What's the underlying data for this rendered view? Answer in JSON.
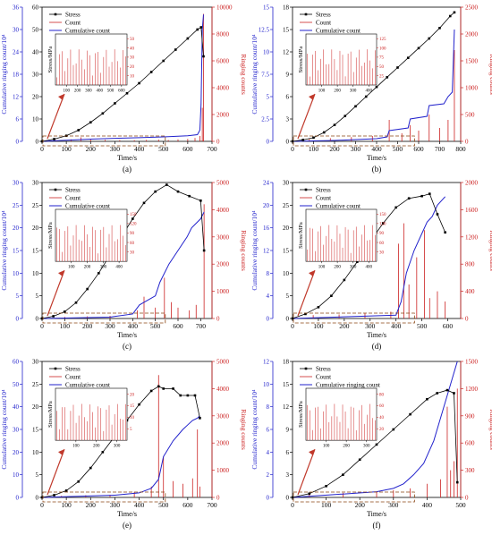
{
  "chart_data": [
    {
      "panel_label": "(a)",
      "type": "line",
      "xlabel": "Time/s",
      "xlim": [
        0,
        700
      ],
      "xticks": [
        0,
        100,
        200,
        300,
        400,
        500,
        600,
        700
      ],
      "yleft_outer": {
        "label": "Cumulative ringing count/10⁴",
        "lim": [
          0,
          36
        ],
        "ticks": [
          0,
          6,
          12,
          18,
          24,
          30,
          36
        ],
        "color": "#2222cc"
      },
      "yleft_inner": {
        "label": "Stress/MPa",
        "lim": [
          0,
          60
        ],
        "ticks": [
          0,
          10,
          20,
          30,
          40,
          50,
          60
        ],
        "color": "#000000"
      },
      "yright": {
        "label": "Ringing counts",
        "lim": [
          0,
          10000
        ],
        "ticks": [
          0,
          2000,
          4000,
          6000,
          8000,
          10000
        ],
        "color": "#cc2222"
      },
      "legend": [
        "Stress",
        "Count",
        "Cumulative count"
      ],
      "legend_position": "top-left",
      "series": [
        {
          "name": "Stress",
          "axis": "inner",
          "x": [
            0,
            50,
            100,
            150,
            200,
            250,
            300,
            350,
            400,
            450,
            500,
            550,
            600,
            640,
            655,
            665
          ],
          "y": [
            0,
            1,
            2.5,
            5,
            8.5,
            12.5,
            17,
            21.5,
            26,
            31,
            36,
            41,
            46,
            50,
            51,
            38
          ]
        },
        {
          "name": "Cumulative count",
          "axis": "outer",
          "x": [
            0,
            100,
            200,
            300,
            400,
            500,
            600,
            640,
            650,
            655,
            660,
            665
          ],
          "y": [
            0,
            0.3,
            0.6,
            0.8,
            1.0,
            1.2,
            1.5,
            1.8,
            3,
            10,
            30,
            34
          ]
        },
        {
          "name": "Count",
          "axis": "right",
          "x": [
            60,
            120,
            160,
            200,
            260,
            320,
            380,
            430,
            480,
            520,
            560,
            600,
            630,
            650,
            660,
            665
          ],
          "y": [
            80,
            150,
            300,
            200,
            120,
            100,
            90,
            110,
            130,
            100,
            150,
            180,
            250,
            400,
            2500,
            9500
          ]
        }
      ],
      "inset": {
        "xlim": [
          0,
          650
        ],
        "xticks": [
          100,
          200,
          300,
          400,
          500,
          600
        ],
        "yticks": [
          10,
          20,
          30,
          40,
          50
        ]
      }
    },
    {
      "panel_label": "(b)",
      "type": "line",
      "xlabel": "Time/s",
      "xlim": [
        0,
        800
      ],
      "xticks": [
        0,
        100,
        200,
        300,
        400,
        500,
        600,
        700,
        800
      ],
      "yleft_outer": {
        "label": "Cumulative ringing count/10⁴",
        "lim": [
          0,
          15
        ],
        "ticks": [
          0,
          2.5,
          5.0,
          7.5,
          10.0,
          12.5,
          15.0
        ],
        "color": "#2222cc"
      },
      "yleft_inner": {
        "label": "Stress/MPa",
        "lim": [
          0,
          18
        ],
        "ticks": [
          0,
          3,
          6,
          9,
          12,
          15,
          18
        ],
        "color": "#000000"
      },
      "yright": {
        "label": "Ringing counts",
        "lim": [
          0,
          2500
        ],
        "ticks": [
          0,
          500,
          1000,
          1500,
          2000,
          2500
        ],
        "color": "#cc2222"
      },
      "legend": [
        "Stress",
        "Count",
        "Cumulative count"
      ],
      "legend_position": "top-left",
      "series": [
        {
          "name": "Stress",
          "axis": "inner",
          "x": [
            0,
            50,
            100,
            150,
            200,
            250,
            300,
            350,
            400,
            450,
            500,
            550,
            600,
            650,
            700,
            750,
            770
          ],
          "y": [
            0,
            0.2,
            0.5,
            1.2,
            2.2,
            3.4,
            4.7,
            6,
            7.3,
            8.6,
            9.9,
            11.2,
            12.5,
            13.8,
            15.2,
            16.8,
            17.3
          ]
        },
        {
          "name": "Cumulative count",
          "axis": "outer",
          "x": [
            0,
            200,
            400,
            450,
            460,
            550,
            560,
            640,
            650,
            720,
            740,
            760,
            770
          ],
          "y": [
            0,
            0.1,
            0.3,
            0.5,
            1.2,
            1.5,
            2.5,
            2.8,
            4.0,
            4.2,
            5.0,
            5.5,
            12.5
          ]
        },
        {
          "name": "Count",
          "axis": "right",
          "x": [
            80,
            180,
            280,
            380,
            460,
            520,
            560,
            600,
            650,
            700,
            740,
            770
          ],
          "y": [
            50,
            60,
            80,
            100,
            400,
            150,
            300,
            200,
            500,
            250,
            400,
            1700
          ]
        }
      ],
      "inset": {
        "xlim": [
          0,
          450
        ],
        "xticks": [
          100,
          200,
          300,
          400
        ],
        "yticks": [
          25,
          50,
          75,
          100,
          125
        ]
      }
    },
    {
      "panel_label": "(c)",
      "type": "line",
      "xlabel": "Time/s",
      "xlim": [
        0,
        750
      ],
      "xticks": [
        0,
        100,
        200,
        300,
        400,
        500,
        600,
        700
      ],
      "yleft_outer": {
        "label": "Cumulative ringing count/10⁴",
        "lim": [
          0,
          30
        ],
        "ticks": [
          0,
          5,
          10,
          15,
          20,
          25,
          30
        ],
        "color": "#2222cc"
      },
      "yleft_inner": {
        "label": "Stress/MPa",
        "lim": [
          0,
          30
        ],
        "ticks": [
          0,
          5,
          10,
          15,
          20,
          25,
          30
        ],
        "color": "#000000"
      },
      "yright": {
        "label": "Ringing counts",
        "lim": [
          0,
          5000
        ],
        "ticks": [
          0,
          1000,
          2000,
          3000,
          4000,
          5000
        ],
        "color": "#cc2222"
      },
      "legend": [
        "Stress",
        "Count",
        "Cumulative count"
      ],
      "legend_position": "top-left",
      "series": [
        {
          "name": "Stress",
          "axis": "inner",
          "x": [
            0,
            50,
            100,
            150,
            200,
            250,
            300,
            350,
            400,
            450,
            500,
            550,
            600,
            650,
            700,
            715
          ],
          "y": [
            0,
            0.5,
            1.5,
            3.5,
            6.5,
            10,
            14,
            18,
            22,
            25.5,
            28,
            29.5,
            28,
            27,
            26,
            15
          ]
        },
        {
          "name": "Cumulative count",
          "axis": "outer",
          "x": [
            0,
            300,
            400,
            430,
            500,
            520,
            560,
            600,
            640,
            660,
            700,
            715
          ],
          "y": [
            0,
            0.3,
            1.0,
            3.0,
            5.0,
            8.0,
            12.0,
            15.0,
            18.0,
            20.0,
            22.0,
            23.5
          ]
        },
        {
          "name": "Count",
          "axis": "right",
          "x": [
            100,
            200,
            300,
            420,
            450,
            500,
            540,
            570,
            600,
            650,
            680,
            715
          ],
          "y": [
            60,
            80,
            100,
            300,
            800,
            400,
            1500,
            600,
            400,
            300,
            500,
            4200
          ]
        }
      ],
      "inset": {
        "xlim": [
          0,
          450
        ],
        "xticks": [
          100,
          200,
          300,
          400
        ],
        "yticks": [
          30,
          60,
          90,
          120,
          150
        ]
      }
    },
    {
      "panel_label": "(d)",
      "type": "line",
      "xlabel": "Time/s",
      "xlim": [
        0,
        650
      ],
      "xticks": [
        0,
        100,
        200,
        300,
        400,
        500,
        600
      ],
      "yleft_outer": {
        "label": "Cumulative ringing count/10⁴",
        "lim": [
          0,
          24
        ],
        "ticks": [
          0,
          4,
          8,
          12,
          16,
          20,
          24
        ],
        "color": "#2222cc"
      },
      "yleft_inner": {
        "label": "Stress/MPa",
        "lim": [
          0,
          30
        ],
        "ticks": [
          0,
          5,
          10,
          15,
          20,
          25,
          30
        ],
        "color": "#000000"
      },
      "yright": {
        "label": "Ringing counts",
        "lim": [
          0,
          2000
        ],
        "ticks": [
          0,
          400,
          800,
          1200,
          1600,
          2000
        ],
        "color": "#cc2222"
      },
      "legend": [
        "Stress",
        "Count",
        "Cumulative count"
      ],
      "legend_position": "top-left",
      "series": [
        {
          "name": "Stress",
          "axis": "inner",
          "x": [
            0,
            50,
            100,
            150,
            200,
            250,
            300,
            350,
            400,
            450,
            500,
            530,
            560,
            590
          ],
          "y": [
            0,
            1,
            2.5,
            5,
            8.5,
            12.5,
            17,
            21,
            24.5,
            26.5,
            27,
            27.5,
            23,
            19
          ]
        },
        {
          "name": "Cumulative count",
          "axis": "outer",
          "x": [
            0,
            200,
            400,
            420,
            440,
            470,
            500,
            520,
            540,
            560,
            590
          ],
          "y": [
            0,
            0.3,
            0.6,
            3,
            8,
            12,
            15,
            17,
            18,
            20,
            21.5
          ]
        },
        {
          "name": "Count",
          "axis": "right",
          "x": [
            80,
            180,
            280,
            380,
            410,
            430,
            450,
            480,
            510,
            530,
            560,
            590
          ],
          "y": [
            50,
            60,
            80,
            100,
            1100,
            1400,
            500,
            900,
            1300,
            300,
            400,
            250
          ]
        }
      ],
      "inset": {
        "xlim": [
          0,
          450
        ],
        "xticks": [
          100,
          200,
          300,
          400
        ],
        "yticks": [
          30,
          60,
          90,
          120,
          150
        ]
      }
    },
    {
      "panel_label": "(e)",
      "type": "line",
      "xlabel": "Time/s",
      "xlim": [
        0,
        700
      ],
      "xticks": [
        0,
        100,
        200,
        300,
        400,
        500,
        600,
        700
      ],
      "yleft_outer": {
        "label": "Cumulative ringing count/10⁴",
        "lim": [
          0,
          60
        ],
        "ticks": [
          0,
          10,
          20,
          30,
          40,
          50,
          60
        ],
        "color": "#2222cc"
      },
      "yleft_inner": {
        "label": "Stress/MPa",
        "lim": [
          0,
          30
        ],
        "ticks": [
          0,
          5,
          10,
          15,
          20,
          25,
          30
        ],
        "color": "#000000"
      },
      "yright": {
        "label": "Ringing counts",
        "lim": [
          0,
          5000
        ],
        "ticks": [
          0,
          1000,
          2000,
          3000,
          4000,
          5000
        ],
        "color": "#cc2222"
      },
      "legend": [
        "Stress",
        "Count",
        "Cumulative count"
      ],
      "legend_position": "top-left",
      "series": [
        {
          "name": "Stress",
          "axis": "inner",
          "x": [
            0,
            50,
            100,
            150,
            200,
            250,
            300,
            350,
            400,
            450,
            480,
            500,
            540,
            570,
            600,
            630,
            650
          ],
          "y": [
            0,
            0.5,
            1.5,
            3.5,
            6.5,
            10,
            13.5,
            17,
            20.5,
            23.5,
            24.5,
            24,
            24,
            22.5,
            22.5,
            22.5,
            17.5
          ]
        },
        {
          "name": "Cumulative count",
          "axis": "outer",
          "x": [
            0,
            300,
            400,
            450,
            480,
            500,
            540,
            580,
            600,
            620,
            640,
            650
          ],
          "y": [
            0,
            1,
            2,
            4,
            8,
            18,
            25,
            30,
            32,
            34,
            35,
            36
          ]
        },
        {
          "name": "Count",
          "axis": "right",
          "x": [
            80,
            180,
            280,
            380,
            450,
            480,
            500,
            540,
            580,
            620,
            640,
            650
          ],
          "y": [
            60,
            80,
            100,
            200,
            400,
            4500,
            1500,
            600,
            500,
            700,
            2500,
            400
          ]
        }
      ],
      "inset": {
        "xlim": [
          0,
          350
        ],
        "xticks": [
          100,
          200,
          300
        ],
        "yticks": [
          5,
          10,
          15,
          20
        ]
      }
    },
    {
      "panel_label": "(f)",
      "type": "line",
      "xlabel": "Time/s",
      "xlim": [
        0,
        500
      ],
      "xticks": [
        0,
        100,
        200,
        300,
        400,
        500
      ],
      "yleft_outer": {
        "label": "Cumulative ringing count/10⁴",
        "lim": [
          0,
          12
        ],
        "ticks": [
          0,
          2,
          4,
          6,
          8,
          10,
          12
        ],
        "color": "#2222cc"
      },
      "yleft_inner": {
        "label": "Stress/MPa",
        "lim": [
          0,
          18
        ],
        "ticks": [
          0,
          3,
          6,
          9,
          12,
          15,
          18
        ],
        "color": "#000000"
      },
      "yright": {
        "label": "Ringing counts",
        "lim": [
          0,
          1500
        ],
        "ticks": [
          0,
          300,
          600,
          900,
          1200,
          1500
        ],
        "color": "#cc2222"
      },
      "legend": [
        "Stress",
        "Count",
        "Cumulative ringing count"
      ],
      "legend_position": "top-left",
      "series": [
        {
          "name": "Stress",
          "axis": "inner",
          "x": [
            0,
            50,
            100,
            150,
            200,
            250,
            300,
            350,
            400,
            430,
            460,
            480,
            490
          ],
          "y": [
            0,
            0.5,
            1.5,
            3,
            5,
            7,
            9,
            11,
            13,
            13.8,
            14.2,
            13.8,
            2
          ]
        },
        {
          "name": "Cumulative count",
          "axis": "outer",
          "x": [
            0,
            150,
            250,
            300,
            330,
            360,
            390,
            420,
            440,
            460,
            480,
            490
          ],
          "y": [
            0,
            0.3,
            0.5,
            0.8,
            1.2,
            2,
            3,
            5,
            7,
            9,
            11,
            12
          ]
        },
        {
          "name": "Count",
          "axis": "right",
          "x": [
            50,
            150,
            250,
            300,
            350,
            400,
            440,
            460,
            470,
            480,
            490
          ],
          "y": [
            40,
            50,
            60,
            80,
            100,
            150,
            200,
            1000,
            300,
            400,
            1200
          ]
        }
      ],
      "inset": {
        "xlim": [
          0,
          350
        ],
        "xticks": [
          100,
          200,
          300
        ],
        "yticks": [
          20,
          40,
          60,
          80
        ]
      }
    }
  ]
}
